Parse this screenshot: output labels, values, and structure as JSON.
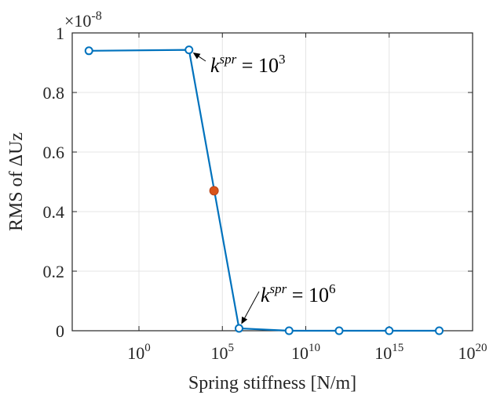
{
  "chart_data": {
    "type": "line",
    "xlabel": "Spring stiffness [N/m]",
    "ylabel": "RMS of ΔUz",
    "x_scale": "log",
    "xlim": [
      0.0001,
      1e+20
    ],
    "ylim": [
      0,
      1
    ],
    "y_multiplier": "×10",
    "y_multiplier_exp": "-8",
    "x_ticks": [
      {
        "label": "10",
        "exp": "0",
        "value": 1
      },
      {
        "label": "10",
        "exp": "5",
        "value": 100000
      },
      {
        "label": "10",
        "exp": "10",
        "value": 10000000000
      },
      {
        "label": "10",
        "exp": "15",
        "value": 1000000000000000.0
      },
      {
        "label": "10",
        "exp": "20",
        "value": 1e+20
      }
    ],
    "y_ticks": [
      {
        "label": "0",
        "value": 0
      },
      {
        "label": "0.2",
        "value": 0.2
      },
      {
        "label": "0.4",
        "value": 0.4
      },
      {
        "label": "0.6",
        "value": 0.6
      },
      {
        "label": "0.8",
        "value": 0.8
      },
      {
        "label": "1",
        "value": 1
      }
    ],
    "grid": true,
    "series": [
      {
        "color": "#0072BD",
        "x": [
          0.001,
          1000,
          1000000,
          1000000000.0,
          1000000000000.0,
          1000000000000000.0,
          1e+18
        ],
        "y": [
          0.94,
          0.943,
          0.008,
          0.0,
          0.0,
          0.0,
          0.0
        ]
      }
    ],
    "highlight_point": {
      "x": 31623,
      "y": 0.47,
      "color": "#D95319"
    },
    "annotations": [
      {
        "base": "k",
        "sup1": "spr",
        "eq": " = 10",
        "sup2": "3",
        "target_x": 1000,
        "target_y": 0.943
      },
      {
        "base": "k",
        "sup1": "spr",
        "eq": " = 10",
        "sup2": "6",
        "target_x": 1000000,
        "target_y": 0.008
      }
    ]
  }
}
